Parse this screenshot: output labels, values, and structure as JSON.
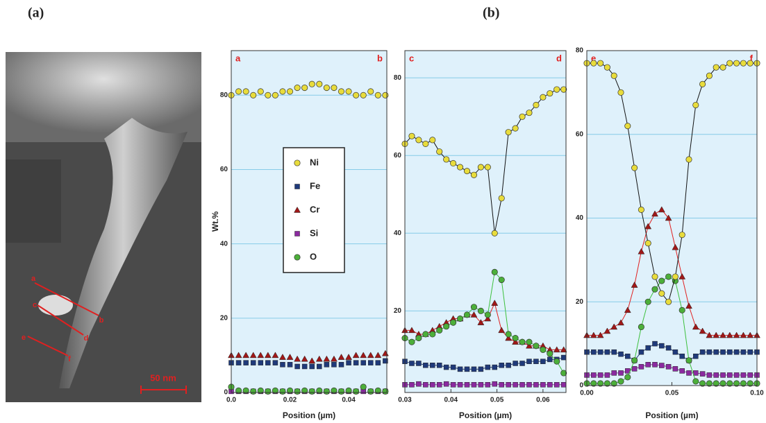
{
  "figure": {
    "panel_a": "(a)",
    "panel_b": "(b)",
    "scale_bar": "50 nm",
    "line_labels": [
      "a",
      "b",
      "c",
      "d",
      "e",
      "f"
    ]
  },
  "chart_data": [
    {
      "type": "scatter",
      "lines": false,
      "legend": true,
      "corner_labels": [
        "a",
        "b"
      ],
      "xlabel": "Position (µm)",
      "ylabel": "Wt.%",
      "grid": true,
      "xlim": [
        0,
        0.053
      ],
      "xticks": [
        {
          "value": 0,
          "label": "0.0"
        },
        0.02,
        0.04
      ],
      "ylim": [
        0,
        92
      ],
      "yticks": [
        0,
        20,
        40,
        60,
        80
      ],
      "x": [
        0,
        0.0025,
        0.005,
        0.0075,
        0.01,
        0.0125,
        0.015,
        0.0175,
        0.02,
        0.0225,
        0.025,
        0.0275,
        0.03,
        0.0325,
        0.035,
        0.0375,
        0.04,
        0.0425,
        0.045,
        0.0475,
        0.05,
        0.0525
      ],
      "series": [
        {
          "name": "Ni",
          "color": "#e8dc3c",
          "marker": "circle",
          "values": [
            80,
            81,
            81,
            80,
            81,
            80,
            80,
            81,
            81,
            82,
            82,
            83,
            83,
            82,
            82,
            81,
            81,
            80,
            80,
            81,
            80,
            80
          ]
        },
        {
          "name": "Fe",
          "color": "#1f3a7a",
          "marker": "square",
          "values": [
            8,
            8,
            8,
            8,
            8,
            8,
            8,
            7.5,
            7.5,
            7,
            7,
            7,
            7,
            7.5,
            7.5,
            7.5,
            8,
            8,
            8,
            8,
            8,
            8.5
          ]
        },
        {
          "name": "Cr",
          "color": "#a01818",
          "marker": "triangle",
          "values": [
            10,
            10,
            10,
            10,
            10,
            10,
            10,
            9.5,
            9.5,
            9,
            9,
            8.5,
            9,
            9,
            9,
            9.5,
            9.5,
            10,
            10,
            10,
            10,
            10.5
          ]
        },
        {
          "name": "Si",
          "color": "#8b2aa0",
          "marker": "square",
          "values": [
            0.3,
            0.3,
            0.3,
            0.3,
            0.3,
            0.3,
            0.3,
            0.3,
            0.3,
            0.3,
            0.3,
            0.3,
            0.3,
            0.3,
            0.3,
            0.3,
            0.3,
            0.3,
            0.3,
            0.3,
            0.3,
            0.3
          ]
        },
        {
          "name": "O",
          "color": "#4caf3a",
          "marker": "circle",
          "values": [
            1.5,
            0.5,
            0.5,
            0.3,
            0.5,
            0.3,
            0.5,
            0.3,
            0.5,
            0.3,
            0.5,
            0.3,
            0.5,
            0.3,
            0.5,
            0.3,
            0.5,
            0.3,
            1.5,
            0.3,
            0.5,
            0.3
          ]
        }
      ]
    },
    {
      "type": "scatter",
      "lines": true,
      "legend": false,
      "corner_labels": [
        "c",
        "d"
      ],
      "xlabel": "Position (µm)",
      "grid": true,
      "xlim": [
        0.03,
        0.065
      ],
      "xticks": [
        0.03,
        0.04,
        0.05,
        0.06
      ],
      "ylim": [
        -1,
        87
      ],
      "yticks": [
        20,
        40,
        60,
        80
      ],
      "x": [
        0.03,
        0.0315,
        0.033,
        0.0345,
        0.036,
        0.0375,
        0.039,
        0.0405,
        0.042,
        0.0435,
        0.045,
        0.0465,
        0.048,
        0.0495,
        0.051,
        0.0525,
        0.054,
        0.0555,
        0.057,
        0.0585,
        0.06,
        0.0615,
        0.063,
        0.0645
      ],
      "series": [
        {
          "name": "Ni",
          "color": "#e8dc3c",
          "marker": "circle",
          "values": [
            63,
            65,
            64,
            63,
            64,
            61,
            59,
            58,
            57,
            56,
            55,
            57,
            57,
            40,
            49,
            66,
            67,
            70,
            71,
            73,
            75,
            76,
            77,
            77
          ]
        },
        {
          "name": "Fe",
          "color": "#1f3a7a",
          "marker": "square",
          "values": [
            7,
            6.5,
            6.5,
            6,
            6,
            6,
            5.5,
            5.5,
            5,
            5,
            5,
            5,
            5.5,
            5.5,
            6,
            6,
            6.5,
            6.5,
            7,
            7,
            7,
            7.5,
            7.5,
            8
          ]
        },
        {
          "name": "Cr",
          "color": "#a01818",
          "marker": "triangle",
          "values": [
            15,
            15,
            14,
            14,
            15,
            16,
            17,
            18,
            18,
            19,
            19,
            17,
            18,
            22,
            15,
            13,
            12,
            12,
            11,
            11,
            11,
            10,
            10,
            10
          ]
        },
        {
          "name": "Si",
          "color": "#8b2aa0",
          "marker": "square",
          "values": [
            1,
            1,
            1.2,
            1,
            1,
            1,
            1.2,
            1,
            1,
            1,
            1,
            1,
            1,
            1.2,
            1,
            1,
            1,
            1,
            1,
            1,
            1,
            1,
            1,
            1
          ]
        },
        {
          "name": "O",
          "color": "#4caf3a",
          "marker": "circle",
          "values": [
            13,
            12,
            13,
            14,
            14,
            15,
            16,
            17,
            18,
            19,
            21,
            20,
            19,
            30,
            28,
            14,
            13,
            12,
            12,
            11,
            10,
            9,
            7,
            4
          ]
        }
      ]
    },
    {
      "type": "scatter",
      "lines": true,
      "legend": false,
      "corner_labels": [
        "e",
        "f"
      ],
      "xlabel": "Position (µm)",
      "grid": true,
      "xlim": [
        0,
        0.1
      ],
      "xticks": [
        {
          "value": 0,
          "label": "0.00"
        },
        0.05,
        {
          "value": 0.1,
          "label": "0.10"
        }
      ],
      "ylim": [
        0,
        80
      ],
      "yticks": [
        0,
        20,
        40,
        60,
        80
      ],
      "x": [
        0,
        0.004,
        0.008,
        0.012,
        0.016,
        0.02,
        0.024,
        0.028,
        0.032,
        0.036,
        0.04,
        0.044,
        0.048,
        0.052,
        0.056,
        0.06,
        0.064,
        0.068,
        0.072,
        0.076,
        0.08,
        0.084,
        0.088,
        0.092,
        0.096,
        0.1
      ],
      "series": [
        {
          "name": "Ni",
          "color": "#e8dc3c",
          "marker": "circle",
          "values": [
            77,
            77,
            77,
            76,
            74,
            70,
            62,
            52,
            42,
            34,
            26,
            22,
            20,
            26,
            36,
            54,
            67,
            72,
            74,
            76,
            76,
            77,
            77,
            77,
            77,
            77
          ]
        },
        {
          "name": "Fe",
          "color": "#1f3a7a",
          "marker": "square",
          "values": [
            8,
            8,
            8,
            8,
            8,
            7.5,
            7,
            6,
            8,
            9,
            10,
            9.5,
            9,
            8,
            7,
            6,
            7,
            8,
            8,
            8,
            8,
            8,
            8,
            8,
            8,
            8
          ]
        },
        {
          "name": "Cr",
          "color": "#a01818",
          "marker": "triangle",
          "values": [
            12,
            12,
            12,
            13,
            14,
            15,
            18,
            24,
            32,
            38,
            41,
            42,
            40,
            33,
            26,
            19,
            14,
            13,
            12,
            12,
            12,
            12,
            12,
            12,
            12,
            12
          ]
        },
        {
          "name": "Si",
          "color": "#8b2aa0",
          "marker": "square",
          "values": [
            2.5,
            2.5,
            2.5,
            2.5,
            3,
            3,
            3.5,
            4,
            4.5,
            5,
            5,
            4.8,
            4.5,
            4,
            3.5,
            3,
            3,
            2.8,
            2.5,
            2.5,
            2.5,
            2.5,
            2.5,
            2.5,
            2.5,
            2.5
          ]
        },
        {
          "name": "O",
          "color": "#4caf3a",
          "marker": "circle",
          "values": [
            0.5,
            0.5,
            0.5,
            0.5,
            0.5,
            1,
            2,
            6,
            14,
            20,
            23,
            25,
            26,
            25,
            18,
            6,
            1,
            0.5,
            0.5,
            0.5,
            0.5,
            0.5,
            0.5,
            0.5,
            0.5,
            0.5
          ]
        }
      ]
    }
  ]
}
